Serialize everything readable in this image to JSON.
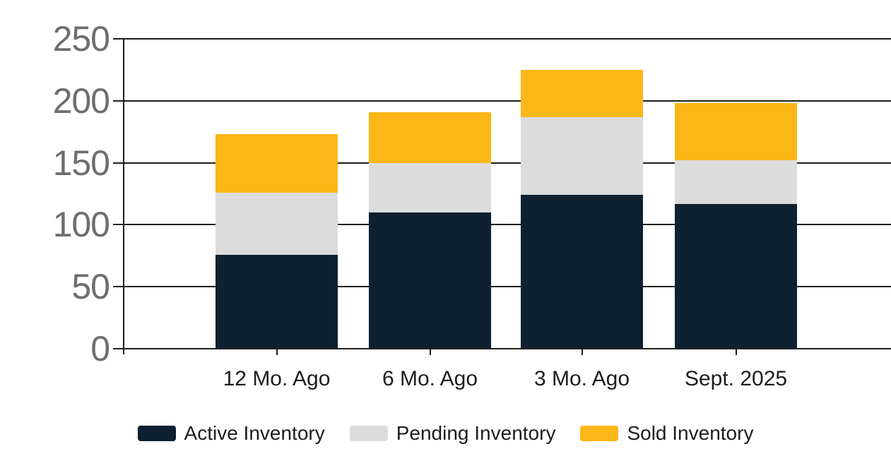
{
  "chart_data": {
    "type": "bar",
    "stacked": true,
    "title": "",
    "xlabel": "",
    "ylabel": "",
    "categories": [
      "12 Mo. Ago",
      "6 Mo. Ago",
      "3 Mo. Ago",
      "Sept. 2025"
    ],
    "series": [
      {
        "name": "Active Inventory",
        "color": "#0d2130",
        "values": [
          76,
          110,
          124,
          117
        ]
      },
      {
        "name": "Pending Inventory",
        "color": "#dcdcdc",
        "values": [
          50,
          40,
          63,
          35
        ]
      },
      {
        "name": "Sold Inventory",
        "color": "#fbb617",
        "values": [
          47,
          41,
          38,
          46
        ]
      }
    ],
    "stack_totals": [
      173,
      191,
      225,
      198
    ],
    "ylim": [
      0,
      250
    ],
    "ytick_step": 50,
    "yticks": [
      "0",
      "50",
      "100",
      "150",
      "200",
      "250"
    ],
    "grid": "horizontal",
    "legend_position": "bottom"
  },
  "colors": {
    "background": "#ffffff",
    "gridline": "#1d1d1b",
    "y_tick_label": "#6d6e71",
    "x_tick_label": "#1d1d1b",
    "legend_text": "#1d1d1b",
    "active_inventory": "#0d2130",
    "pending_inventory": "#dcdcdc",
    "sold_inventory": "#fbb617"
  }
}
